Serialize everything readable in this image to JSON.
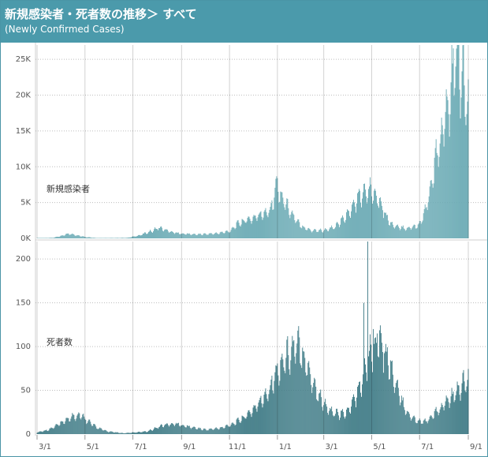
{
  "header": {
    "title": "新規感染者・死者数の推移＞ すべて",
    "subtitle": "(Newly Confirmed Cases)"
  },
  "colors": {
    "header_bg": "#4b9aab",
    "cases_bar": "#6aaab4",
    "deaths_bar": "#3f7b86",
    "grid": "#bdbdbd"
  },
  "chart_data": [
    {
      "type": "bar",
      "panel_label": "新規感染者",
      "ylim": [
        0,
        27000
      ],
      "y_ticks": [
        0,
        5000,
        10000,
        15000,
        20000,
        25000
      ],
      "y_tick_labels": [
        "0K",
        "5K",
        "10K",
        "15K",
        "20K",
        "25K"
      ],
      "grid": true,
      "x_tick_labels": [
        "3/1",
        "5/1",
        "7/1",
        "9/1",
        "11/1",
        "1/1",
        "3/1",
        "5/1",
        "7/1",
        "9/1"
      ],
      "x_ticks_day_index": [
        0,
        61,
        122,
        184,
        245,
        306,
        365,
        426,
        487,
        549
      ],
      "anchors_day_value": [
        [
          0,
          20
        ],
        [
          20,
          80
        ],
        [
          30,
          300
        ],
        [
          40,
          650
        ],
        [
          48,
          500
        ],
        [
          60,
          220
        ],
        [
          75,
          50
        ],
        [
          100,
          60
        ],
        [
          115,
          80
        ],
        [
          130,
          400
        ],
        [
          145,
          1000
        ],
        [
          155,
          1500
        ],
        [
          160,
          1300
        ],
        [
          168,
          1000
        ],
        [
          180,
          700
        ],
        [
          200,
          550
        ],
        [
          215,
          600
        ],
        [
          230,
          700
        ],
        [
          245,
          1000
        ],
        [
          255,
          2000
        ],
        [
          265,
          2500
        ],
        [
          275,
          2800
        ],
        [
          285,
          3300
        ],
        [
          295,
          3900
        ],
        [
          300,
          4800
        ],
        [
          305,
          7800
        ],
        [
          310,
          6000
        ],
        [
          320,
          4200
        ],
        [
          330,
          2400
        ],
        [
          340,
          1500
        ],
        [
          350,
          1100
        ],
        [
          365,
          1100
        ],
        [
          380,
          1600
        ],
        [
          390,
          2700
        ],
        [
          400,
          4000
        ],
        [
          410,
          5800
        ],
        [
          425,
          6800
        ],
        [
          430,
          6500
        ],
        [
          440,
          4200
        ],
        [
          450,
          2000
        ],
        [
          460,
          1500
        ],
        [
          470,
          1400
        ],
        [
          480,
          1600
        ],
        [
          487,
          2000
        ],
        [
          495,
          4000
        ],
        [
          500,
          6500
        ],
        [
          510,
          12000
        ],
        [
          520,
          16500
        ],
        [
          525,
          19000
        ],
        [
          530,
          24000
        ],
        [
          535,
          25800
        ],
        [
          540,
          23000
        ],
        [
          545,
          20000
        ],
        [
          549,
          18500
        ]
      ]
    },
    {
      "type": "bar",
      "panel_label": "死者数",
      "ylim": [
        0,
        220
      ],
      "y_ticks": [
        0,
        50,
        100,
        150,
        200
      ],
      "y_tick_labels": [
        "0",
        "50",
        "100",
        "150",
        "200"
      ],
      "grid": true,
      "x_tick_labels": [
        "3/1",
        "5/1",
        "7/1",
        "9/1",
        "11/1",
        "1/1",
        "3/1",
        "5/1",
        "7/1",
        "9/1"
      ],
      "x_ticks_day_index": [
        0,
        61,
        122,
        184,
        245,
        306,
        365,
        426,
        487,
        549
      ],
      "anchors_day_value": [
        [
          0,
          2
        ],
        [
          15,
          5
        ],
        [
          30,
          12
        ],
        [
          45,
          20
        ],
        [
          55,
          22
        ],
        [
          65,
          15
        ],
        [
          75,
          8
        ],
        [
          90,
          3
        ],
        [
          110,
          1
        ],
        [
          140,
          3
        ],
        [
          160,
          10
        ],
        [
          175,
          12
        ],
        [
          195,
          8
        ],
        [
          215,
          5
        ],
        [
          235,
          7
        ],
        [
          250,
          12
        ],
        [
          265,
          20
        ],
        [
          280,
          32
        ],
        [
          295,
          50
        ],
        [
          305,
          70
        ],
        [
          315,
          85
        ],
        [
          325,
          95
        ],
        [
          335,
          100
        ],
        [
          345,
          75
        ],
        [
          355,
          50
        ],
        [
          365,
          35
        ],
        [
          375,
          25
        ],
        [
          385,
          22
        ],
        [
          395,
          25
        ],
        [
          410,
          50
        ],
        [
          420,
          80
        ],
        [
          428,
          100
        ],
        [
          435,
          110
        ],
        [
          445,
          90
        ],
        [
          455,
          60
        ],
        [
          465,
          35
        ],
        [
          475,
          20
        ],
        [
          485,
          15
        ],
        [
          495,
          14
        ],
        [
          505,
          22
        ],
        [
          515,
          30
        ],
        [
          525,
          40
        ],
        [
          535,
          48
        ],
        [
          540,
          55
        ],
        [
          549,
          62
        ]
      ],
      "spikes_day_value": [
        [
          416,
          150
        ],
        [
          421,
          220
        ],
        [
          428,
          120
        ],
        [
          433,
          115
        ],
        [
          444,
          103
        ]
      ]
    }
  ]
}
